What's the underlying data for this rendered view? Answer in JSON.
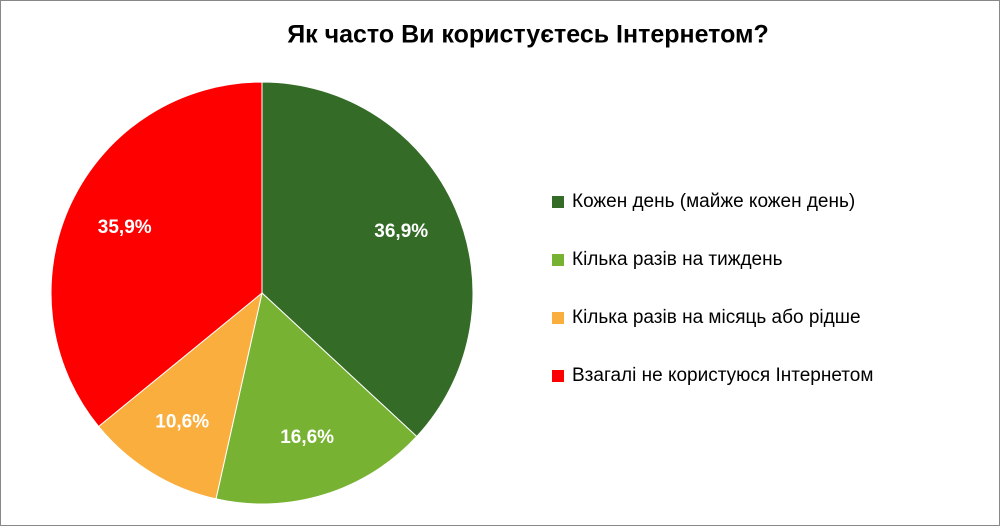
{
  "chart_data": {
    "type": "pie",
    "title": "Як часто Ви користуєтесь Інтернетом?",
    "categories": [
      "Кожен день (майже кожен день)",
      "Кілька разів на тиждень",
      "Кілька разів на місяць або рідше",
      "Взагалі не користуюся Інтернетом"
    ],
    "values": [
      36.9,
      16.6,
      10.6,
      35.9
    ],
    "value_labels": [
      "36,9%",
      "16,6%",
      "10,6%",
      "35,9%"
    ],
    "colors": [
      "#336b27",
      "#77b232",
      "#f9ae3d",
      "#ff0000"
    ],
    "legend": "right"
  }
}
